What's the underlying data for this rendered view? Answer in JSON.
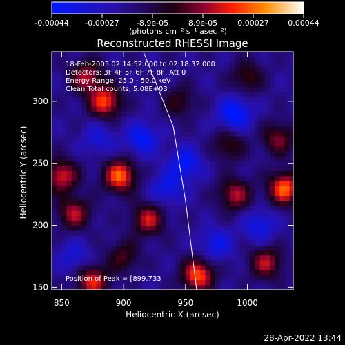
{
  "chart_data": {
    "type": "heatmap",
    "title": "Reconstructed RHESSI Image",
    "xlabel": "Heliocentric X (arcsec)",
    "ylabel": "Heliocentric Y (arcsec)",
    "xlim": [
      842,
      1037
    ],
    "ylim": [
      148,
      340
    ],
    "x_ticks": [
      850,
      900,
      950,
      1000
    ],
    "y_ticks": [
      150,
      200,
      250,
      300
    ],
    "colorbar": {
      "label": "(photons cm⁻² s⁻¹ asec⁻²)",
      "range": [
        -0.00044,
        0.00044
      ],
      "ticks": [
        "-0.00044",
        "-0.00027",
        "-8.9e-05",
        "8.9e-05",
        "0.00027",
        "0.00044"
      ]
    },
    "annotations": [
      "18-Feb-2005 02:14:52.000 to 02:18:32.000",
      "Detectors: 3F 4F 5F 6F 7F 8F, Att 0",
      "Energy Range: 25.0 - 50.0 keV",
      "Clean     Total counts: 5.08E+03"
    ],
    "peak_text": "Position of Peak = [899.733",
    "limb_curve": [
      [
        916,
        340
      ],
      [
        940,
        280
      ],
      [
        950,
        220
      ],
      [
        955,
        180
      ],
      [
        959,
        148
      ]
    ],
    "sources": [
      {
        "x": 885,
        "y": 300,
        "v": 0.0004
      },
      {
        "x": 870,
        "y": 320,
        "v": 0.0003
      },
      {
        "x": 897,
        "y": 240,
        "v": 0.00044
      },
      {
        "x": 850,
        "y": 240,
        "v": 0.00035
      },
      {
        "x": 860,
        "y": 210,
        "v": 0.0003
      },
      {
        "x": 920,
        "y": 205,
        "v": 0.00032
      },
      {
        "x": 900,
        "y": 175,
        "v": 0.0002
      },
      {
        "x": 960,
        "y": 160,
        "v": 0.00042
      },
      {
        "x": 1030,
        "y": 230,
        "v": 0.00044
      },
      {
        "x": 990,
        "y": 225,
        "v": 0.0003
      },
      {
        "x": 1015,
        "y": 170,
        "v": 0.0003
      },
      {
        "x": 985,
        "y": 265,
        "v": 0.0002
      },
      {
        "x": 1000,
        "y": 320,
        "v": 0.0002
      },
      {
        "x": 875,
        "y": 155,
        "v": 0.00035
      },
      {
        "x": 1025,
        "y": 270,
        "v": 0.00025
      },
      {
        "x": 945,
        "y": 300,
        "v": 0.00018
      },
      {
        "x": 950,
        "y": 250,
        "v": -0.00025
      },
      {
        "x": 990,
        "y": 290,
        "v": -0.0003
      },
      {
        "x": 915,
        "y": 270,
        "v": -0.00025
      },
      {
        "x": 1010,
        "y": 200,
        "v": -0.0002
      },
      {
        "x": 935,
        "y": 230,
        "v": -0.0002
      },
      {
        "x": 975,
        "y": 185,
        "v": -0.0002
      },
      {
        "x": 880,
        "y": 270,
        "v": -0.00015
      },
      {
        "x": 860,
        "y": 175,
        "v": -0.00015
      }
    ]
  },
  "footer": {
    "date": "28-Apr-2022 13:44"
  }
}
